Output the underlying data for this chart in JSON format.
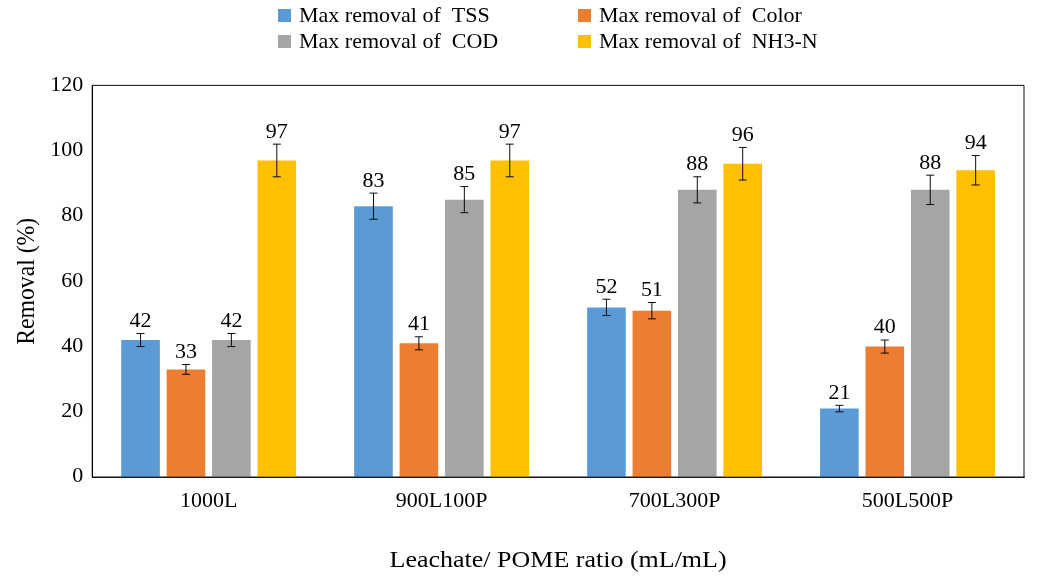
{
  "chart_data": {
    "type": "bar",
    "xlabel": "Leachate/ POME ratio (mL/mL)",
    "ylabel": "Removal (%)",
    "categories": [
      "1000L",
      "900L100P",
      "700L300P",
      "500L500P"
    ],
    "series": [
      {
        "name": "Max removal of  TSS",
        "color": "#5b9bd5",
        "values": [
          42,
          83,
          52,
          21
        ],
        "errors": [
          2,
          4,
          2.5,
          1
        ]
      },
      {
        "name": "Max removal of  Color",
        "color": "#ed7d31",
        "values": [
          33,
          41,
          51,
          40
        ],
        "errors": [
          1.5,
          2,
          2.5,
          2
        ]
      },
      {
        "name": "Max removal of  COD",
        "color": "#a5a5a5",
        "values": [
          42,
          85,
          88,
          88
        ],
        "errors": [
          2,
          4,
          4,
          4.5
        ]
      },
      {
        "name": "Max removal of  NH3-N",
        "color": "#ffc000",
        "values": [
          97,
          97,
          96,
          94
        ],
        "errors": [
          5,
          5,
          5,
          4.5
        ]
      }
    ],
    "ylim": [
      0,
      120
    ],
    "yticks": [
      0,
      20,
      40,
      60,
      80,
      100,
      120
    ],
    "grid": false,
    "legend": "top",
    "data_labels": true
  }
}
